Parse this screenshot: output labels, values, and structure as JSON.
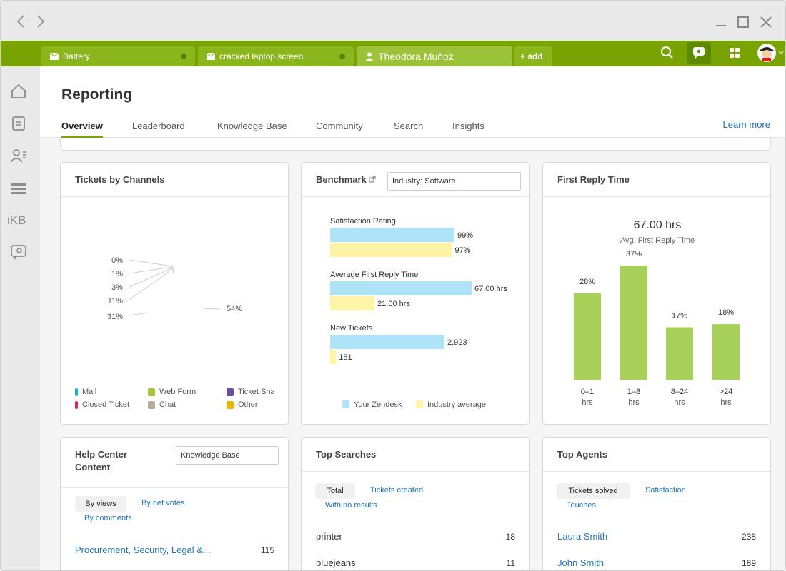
{
  "tabs": [
    {
      "label": "Battery",
      "icon": "mail-icon"
    },
    {
      "label": "cracked laptop screen",
      "icon": "mail-icon"
    },
    {
      "label": "Theodora Muñoz",
      "icon": "user-icon"
    }
  ],
  "add_tab": "+ add",
  "sidebar": {
    "ikb_label": "iKB"
  },
  "header": {
    "title": "Reporting",
    "tabs": [
      "Overview",
      "Leaderboard",
      "Knowledge Base",
      "Community",
      "Search",
      "Insights"
    ],
    "learn_more": "Learn more"
  },
  "tickets_by_channels": {
    "title": "Tickets by Channels",
    "legend": [
      "Mail",
      "Web Form",
      "Ticket Sha",
      "Closed Ticket",
      "Chat",
      "Other"
    ],
    "legend_colors": [
      "#1fa9e1",
      "#a4c639",
      "#6a4fa0",
      "#e0245e",
      "#b9ab95",
      "#e8b800"
    ]
  },
  "benchmark": {
    "title": "Benchmark",
    "select": "Industry: Software",
    "legend": [
      "Your Zendesk",
      "Industry average"
    ],
    "colors": {
      "yours": "#aee3f8",
      "industry": "#fdf4a6"
    }
  },
  "first_reply_time": {
    "title": "First Reply Time",
    "headline": "67.00 hrs",
    "subline": "Avg. First Reply Time",
    "bar_color": "#a8d15a"
  },
  "help_center": {
    "title_line1": "Help Center",
    "title_line2": "Content",
    "select": "Knowledge Base",
    "pill": "By views",
    "link1": "By net votes",
    "link2": "By comments",
    "rows": [
      {
        "label": "Procurement, Security, Legal &...",
        "value": "115"
      }
    ]
  },
  "top_searches": {
    "title": "Top Searches",
    "pill": "Total",
    "link1": "Tickets created",
    "link2": "With no results",
    "rows": [
      {
        "label": "printer",
        "value": "18"
      },
      {
        "label": "bluejeans",
        "value": "11"
      }
    ]
  },
  "top_agents": {
    "title": "Top Agents",
    "pill": "Tickets solved",
    "link1": "Satisfaction",
    "link2": "Touches",
    "rows": [
      {
        "label": "Laura Smith",
        "value": "238"
      },
      {
        "label": "John Smith",
        "value": "189"
      }
    ]
  },
  "chart_data": [
    {
      "type": "pie",
      "title": "Tickets by Channels",
      "labels": [
        "0%",
        "1%",
        "3%",
        "11%",
        "31%",
        "54%"
      ],
      "values": [
        0,
        1,
        3,
        11,
        31,
        54
      ]
    },
    {
      "type": "bar",
      "title": "Benchmark",
      "categories": [
        "Satisfaction Rating",
        "Average First Reply Time",
        "New Tickets"
      ],
      "series": [
        {
          "name": "Your Zendesk",
          "values": [
            99,
            67.0,
            2923
          ],
          "labels": [
            "99%",
            "67.00 hrs",
            "2,923"
          ]
        },
        {
          "name": "Industry average",
          "values": [
            97,
            21.0,
            151
          ],
          "labels": [
            "97%",
            "21.00 hrs",
            "151"
          ]
        }
      ]
    },
    {
      "type": "bar",
      "title": "First Reply Time",
      "categories": [
        "0–1 hrs",
        "1–8 hrs",
        "8–24 hrs",
        ">24 hrs"
      ],
      "category_lines": [
        [
          "0–1",
          "hrs"
        ],
        [
          "1–8",
          "hrs"
        ],
        [
          "8–24",
          "hrs"
        ],
        [
          ">24",
          "hrs"
        ]
      ],
      "values": [
        28,
        37,
        17,
        18
      ],
      "labels": [
        "28%",
        "37%",
        "17%",
        "18%"
      ],
      "ylim": [
        0,
        45
      ]
    }
  ]
}
